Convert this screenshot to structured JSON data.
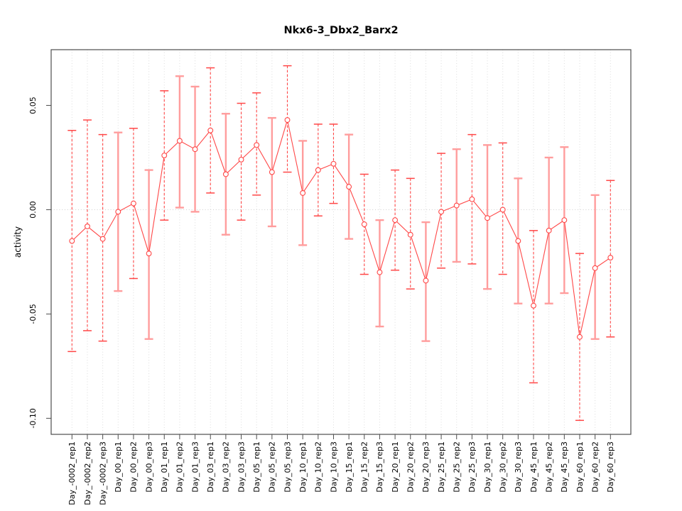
{
  "chart_data": {
    "type": "line",
    "title": "Nkx6-3_Dbx2_Barx2",
    "xlabel": "",
    "ylabel": "activity",
    "ylim": [
      -0.1077,
      0.0767
    ],
    "yticks": [
      0.05,
      0.0,
      -0.05,
      -0.1
    ],
    "ytick_labels": [
      "0.05",
      "0.00",
      "-0.05",
      "-0.10"
    ],
    "grid": {
      "vertical_per_category": true,
      "zero_line": true,
      "style": "dotted",
      "horizontal_lines": false
    },
    "legend_position": "none",
    "marker": "open-circle",
    "colors": {
      "series": "#ff4747",
      "errorbar_dashed": "#ff4747",
      "errorbar_solid": "#ff9d9d",
      "grid": "#dcdcdc",
      "zero_line": "#cfcfcf",
      "axis": "#4d4d4d",
      "text": "#000000",
      "background": "#ffffff"
    },
    "categories": [
      "Day_-0002_rep1",
      "Day_-0002_rep2",
      "Day_-0002_rep3",
      "Day_00_rep1",
      "Day_00_rep2",
      "Day_00_rep3",
      "Day_01_rep1",
      "Day_01_rep2",
      "Day_01_rep3",
      "Day_03_rep1",
      "Day_03_rep2",
      "Day_03_rep3",
      "Day_05_rep1",
      "Day_05_rep2",
      "Day_05_rep3",
      "Day_10_rep1",
      "Day_10_rep2",
      "Day_10_rep3",
      "Day_15_rep1",
      "Day_15_rep2",
      "Day_15_rep3",
      "Day_20_rep1",
      "Day_20_rep2",
      "Day_20_rep3",
      "Day_25_rep1",
      "Day_25_rep2",
      "Day_25_rep3",
      "Day_30_rep1",
      "Day_30_rep2",
      "Day_30_rep3",
      "Day_45_rep1",
      "Day_45_rep2",
      "Day_45_rep3",
      "Day_60_rep1",
      "Day_60_rep2",
      "Day_60_rep3"
    ],
    "series": [
      {
        "name": "activity",
        "values": [
          -0.015,
          -0.008,
          -0.014,
          -0.001,
          0.003,
          -0.021,
          0.026,
          0.033,
          0.029,
          0.038,
          0.017,
          0.024,
          0.031,
          0.018,
          0.043,
          0.008,
          0.019,
          0.022,
          0.011,
          -0.007,
          -0.03,
          -0.005,
          -0.012,
          -0.034,
          -0.001,
          0.002,
          0.005,
          -0.004,
          0.0,
          -0.015,
          -0.046,
          -0.01,
          -0.005,
          -0.061,
          -0.028,
          -0.023
        ],
        "error_upper": [
          0.038,
          0.043,
          0.036,
          0.037,
          0.039,
          0.019,
          0.057,
          0.064,
          0.059,
          0.068,
          0.046,
          0.051,
          0.056,
          0.044,
          0.069,
          0.033,
          0.041,
          0.041,
          0.036,
          0.017,
          -0.005,
          0.019,
          0.015,
          -0.006,
          0.027,
          0.029,
          0.036,
          0.031,
          0.032,
          0.015,
          -0.01,
          0.025,
          0.03,
          -0.021,
          0.007,
          0.014
        ],
        "error_lower": [
          -0.068,
          -0.058,
          -0.063,
          -0.039,
          -0.033,
          -0.062,
          -0.005,
          0.001,
          -0.001,
          0.008,
          -0.012,
          -0.005,
          0.007,
          -0.008,
          0.018,
          -0.017,
          -0.003,
          0.003,
          -0.014,
          -0.031,
          -0.056,
          -0.029,
          -0.038,
          -0.063,
          -0.028,
          -0.025,
          -0.026,
          -0.038,
          -0.031,
          -0.045,
          -0.083,
          -0.045,
          -0.04,
          -0.101,
          -0.062,
          -0.061
        ],
        "errorbar_styles": [
          "dashed",
          "dashed",
          "dashed",
          "solid",
          "dashed",
          "solid",
          "dashed",
          "solid",
          "solid",
          "dashed",
          "solid",
          "dashed",
          "dashed",
          "solid",
          "dashed",
          "solid",
          "dashed",
          "dashed",
          "solid",
          "dashed",
          "solid",
          "dashed",
          "dashed",
          "solid",
          "dashed",
          "solid",
          "dashed",
          "solid",
          "dashed",
          "solid",
          "dashed",
          "solid",
          "solid",
          "dashed",
          "solid",
          "dashed"
        ]
      }
    ]
  }
}
